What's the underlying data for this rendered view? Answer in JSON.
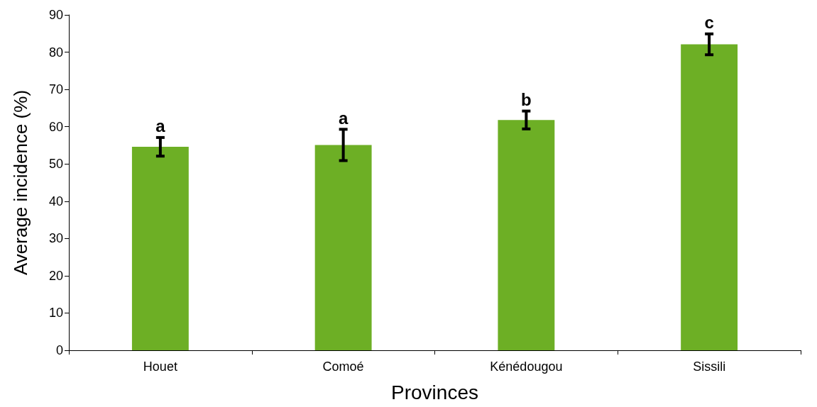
{
  "chart_data": {
    "type": "bar",
    "xlabel": "Provinces",
    "ylabel": "Average incidence (%)",
    "categories": [
      "Houet",
      "Comoé",
      "Kénédougou",
      "Sissili"
    ],
    "values": [
      54.6,
      55.1,
      61.8,
      82.1
    ],
    "errors": [
      2.5,
      4.2,
      2.4,
      2.8
    ],
    "color": "#6daf25",
    "ylim": [
      0,
      90
    ],
    "yticks": [
      0,
      10,
      20,
      30,
      40,
      50,
      60,
      70,
      80,
      90
    ],
    "grid": false,
    "annotations": [
      "a",
      "a",
      "b",
      "c"
    ]
  }
}
